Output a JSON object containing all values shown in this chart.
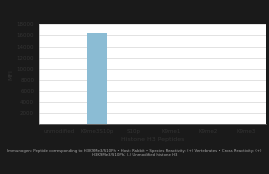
{
  "categories": [
    "unmodified",
    "K9me3S10p",
    "S10p",
    "K9me1",
    "K9me2",
    "K9me3"
  ],
  "values": [
    0,
    16500,
    0,
    0,
    0,
    0
  ],
  "bar_color": "#8bbcd4",
  "ylabel": "MFI",
  "xlabel": "Histone H3 Peptides",
  "ylim": [
    0,
    18000
  ],
  "yticks": [
    0,
    2000,
    4000,
    6000,
    8000,
    10000,
    12000,
    14000,
    16000,
    18000
  ],
  "title_text": "Immunogen: Peptide corresponding to H3K9Me3/S10Ph • Host: Rabbit • Species Reactivity: (+) Vertebrates • Cross Reactivity: (+) H3K9Me3/S10Ph; (-) Unmodified histone H3",
  "background_color": "#1a1a1a",
  "plot_bg_color": "#ffffff",
  "grid_color": "#cccccc",
  "header_bg": "#1a1a1a",
  "footer_bg": "#1a1a1a",
  "footer_text_color": "#aaaaaa",
  "chart_bg": "#f0f0f0"
}
